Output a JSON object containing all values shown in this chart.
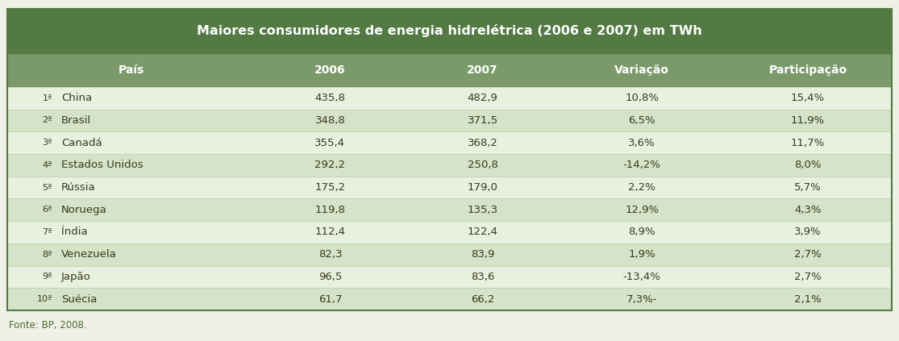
{
  "title": "Maiores consumidores de energia hidrelétrica (2006 e 2007) em TWh",
  "ranks": [
    "1ª",
    "2ª",
    "3ª",
    "4ª",
    "5ª",
    "6ª",
    "7ª",
    "8ª",
    "9ª",
    "10ª"
  ],
  "rows": [
    [
      "China",
      "435,8",
      "482,9",
      "10,8%",
      "15,4%"
    ],
    [
      "Brasil",
      "348,8",
      "371,5",
      "6,5%",
      "11,9%"
    ],
    [
      "Canadá",
      "355,4",
      "368,2",
      "3,6%",
      "11,7%"
    ],
    [
      "Estados Unidos",
      "292,2",
      "250,8",
      "-14,2%",
      "8,0%"
    ],
    [
      "Rússia",
      "175,2",
      "179,0",
      "2,2%",
      "5,7%"
    ],
    [
      "Noruega",
      "119,8",
      "135,3",
      "12,9%",
      "4,3%"
    ],
    [
      "Índia",
      "112,4",
      "122,4",
      "8,9%",
      "3,9%"
    ],
    [
      "Venezuela",
      "82,3",
      "83,9",
      "1,9%",
      "2,7%"
    ],
    [
      "Japão",
      "96,5",
      "83,6",
      "-13,4%",
      "2,7%"
    ],
    [
      "Suécia",
      "61,7",
      "66,2",
      "7,3%-",
      "2,1%"
    ]
  ],
  "footer": "Fonte: BP, 2008.",
  "title_bg": "#527a42",
  "header_bg": "#7a9a6a",
  "row_bg_light": "#e8f0e0",
  "row_bg_dark": "#d5e3c8",
  "title_color": "#ffffff",
  "header_color": "#ffffff",
  "row_text_color": "#3a3a1a",
  "border_color": "#527a42",
  "sep_color": "#c0d0b0",
  "footer_color": "#4a6a2a",
  "fig_bg": "#f0f0e8"
}
